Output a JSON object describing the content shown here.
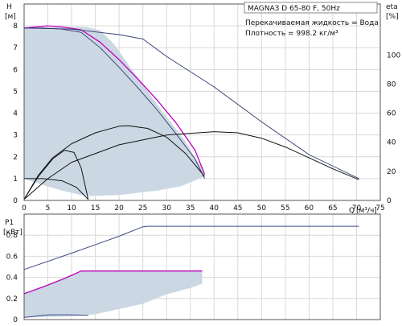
{
  "colors": {
    "envelope_fill": "#cbd8e3",
    "pump_curve": "#c000c0",
    "reference_curve": "#2e3a6e",
    "power_max": "#3d4a80",
    "efficiency": "#111111",
    "grid": "#d9d9d9"
  },
  "chart_data": [
    {
      "type": "line",
      "title": "",
      "header": "MAGNA3 D 65-80 F, 50Hz",
      "info_lines": [
        "Перекачиваемая жидкость = Вода",
        "Плотность = 998.2 кг/м³"
      ],
      "y_axis_letter": "H",
      "ylabel": "[м]",
      "y2_axis_letter": "eta",
      "y2label": "[%]",
      "x_axis_letter": "Q",
      "xlabel": "[м³/ч]",
      "xlim": [
        0,
        75
      ],
      "ylim": [
        0,
        9
      ],
      "y2lim": [
        0,
        135
      ],
      "grid": true,
      "x_ticks": [
        "0",
        "5",
        "10",
        "15",
        "20",
        "25",
        "30",
        "35",
        "40",
        "45",
        "50",
        "55",
        "60",
        "65",
        "70",
        "75"
      ],
      "y_ticks": [
        "0",
        "1",
        "2",
        "3",
        "4",
        "5",
        "6",
        "7",
        "8"
      ],
      "y2_ticks": [
        "0",
        "20",
        "40",
        "60",
        "80",
        "100"
      ],
      "series": [
        {
          "role": "operating-envelope",
          "points": [
            [
              0,
              1.0
            ],
            [
              4,
              0.7
            ],
            [
              8,
              0.45
            ],
            [
              12,
              0.25
            ],
            [
              14,
              0.2
            ],
            [
              20,
              0.25
            ],
            [
              28,
              0.45
            ],
            [
              33,
              0.65
            ],
            [
              38,
              1.1
            ],
            [
              38,
              1.3
            ],
            [
              36,
              1.95
            ],
            [
              34,
              2.7
            ],
            [
              31,
              3.55
            ],
            [
              28,
              4.4
            ],
            [
              25,
              5.3
            ],
            [
              22,
              6.2
            ],
            [
              19,
              7.15
            ],
            [
              16,
              7.8
            ],
            [
              13,
              7.95
            ],
            [
              8,
              7.95
            ],
            [
              4,
              7.92
            ],
            [
              0,
              7.9
            ]
          ]
        },
        {
          "role": "max-speed-curve",
          "points": [
            [
              0,
              7.9
            ],
            [
              5,
              8.0
            ],
            [
              8,
              7.95
            ],
            [
              12,
              7.82
            ],
            [
              16,
              7.25
            ],
            [
              20,
              6.45
            ],
            [
              24,
              5.55
            ],
            [
              28,
              4.6
            ],
            [
              32,
              3.55
            ],
            [
              36,
              2.3
            ],
            [
              38,
              1.2
            ]
          ]
        },
        {
          "role": "extended-curve",
          "points": [
            [
              0,
              7.9
            ],
            [
              10,
              7.85
            ],
            [
              20,
              7.6
            ],
            [
              25,
              7.4
            ],
            [
              30,
              6.6
            ],
            [
              40,
              5.2
            ],
            [
              50,
              3.6
            ],
            [
              60,
              2.1
            ],
            [
              70.5,
              1.0
            ]
          ]
        },
        {
          "role": "max-speed-curve-lower",
          "points": [
            [
              0,
              7.9
            ],
            [
              4,
              7.9
            ],
            [
              8,
              7.85
            ],
            [
              12,
              7.7
            ],
            [
              16,
              7.0
            ],
            [
              20,
              6.1
            ],
            [
              24,
              5.15
            ],
            [
              28,
              4.15
            ],
            [
              32,
              3.05
            ],
            [
              36,
              1.9
            ],
            [
              38,
              1.0
            ]
          ]
        },
        {
          "role": "efficiency-max",
          "points": [
            [
              0,
              0.05
            ],
            [
              3,
              1.15
            ],
            [
              6,
              1.95
            ],
            [
              10,
              2.6
            ],
            [
              15,
              3.1
            ],
            [
              20,
              3.4
            ],
            [
              22,
              3.42
            ],
            [
              26,
              3.3
            ],
            [
              30,
              2.9
            ],
            [
              34,
              2.15
            ],
            [
              38,
              1.1
            ]
          ]
        },
        {
          "role": "efficiency-extended",
          "points": [
            [
              0,
              0.05
            ],
            [
              5,
              1.0
            ],
            [
              10,
              1.75
            ],
            [
              20,
              2.55
            ],
            [
              30,
              3.0
            ],
            [
              40,
              3.15
            ],
            [
              45,
              3.1
            ],
            [
              50,
              2.85
            ],
            [
              55,
              2.45
            ],
            [
              60,
              1.95
            ],
            [
              65,
              1.45
            ],
            [
              70.5,
              0.95
            ]
          ]
        },
        {
          "role": "efficiency-min-speed",
          "points": [
            [
              0,
              0.05
            ],
            [
              3,
              1.1
            ],
            [
              6,
              1.9
            ],
            [
              8.5,
              2.3
            ],
            [
              10.5,
              2.2
            ],
            [
              12,
              1.5
            ],
            [
              13.5,
              0.05
            ]
          ]
        },
        {
          "role": "min-speed-curve",
          "points": [
            [
              0,
              1.0
            ],
            [
              4,
              1.0
            ],
            [
              8,
              0.9
            ],
            [
              11,
              0.6
            ],
            [
              13.5,
              0.05
            ]
          ]
        }
      ]
    },
    {
      "type": "line",
      "title": "",
      "y_axis_letter": "P1",
      "ylabel": "[кВт]",
      "xlim": [
        0,
        75
      ],
      "ylim": [
        0,
        1.0
      ],
      "grid": true,
      "y_ticks": [
        "0",
        "0.2",
        "0.4",
        "0.6",
        "0.8"
      ],
      "series": [
        {
          "role": "power-envelope",
          "points": [
            [
              0,
              0.02
            ],
            [
              10,
              0.03
            ],
            [
              15,
              0.05
            ],
            [
              20,
              0.1
            ],
            [
              25,
              0.15
            ],
            [
              30,
              0.24
            ],
            [
              35,
              0.3
            ],
            [
              37.5,
              0.34
            ],
            [
              37.5,
              0.46
            ],
            [
              12,
              0.46
            ],
            [
              0,
              0.245
            ]
          ]
        },
        {
          "role": "power-max-speed",
          "points": [
            [
              0,
              0.245
            ],
            [
              4,
              0.31
            ],
            [
              8,
              0.38
            ],
            [
              10,
              0.42
            ],
            [
              12,
              0.46
            ],
            [
              37.5,
              0.46
            ]
          ]
        },
        {
          "role": "power-extended",
          "points": [
            [
              0,
              0.475
            ],
            [
              10,
              0.63
            ],
            [
              20,
              0.79
            ],
            [
              25,
              0.88
            ],
            [
              26,
              0.885
            ],
            [
              70.5,
              0.885
            ]
          ]
        },
        {
          "role": "power-min-speed",
          "points": [
            [
              0,
              0.02
            ],
            [
              5,
              0.045
            ],
            [
              10,
              0.045
            ],
            [
              13.5,
              0.04
            ]
          ]
        }
      ]
    }
  ]
}
